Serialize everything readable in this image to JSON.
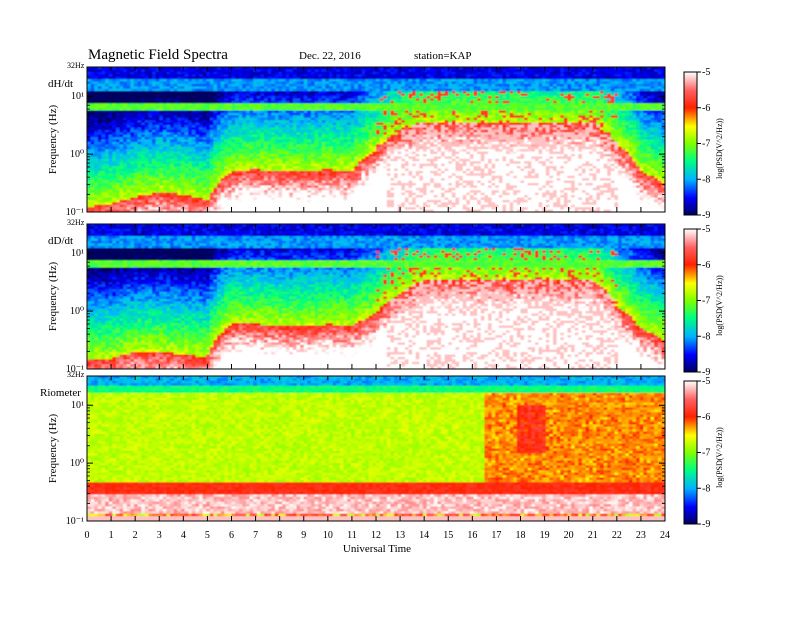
{
  "header": {
    "title": "Magnetic  Field  Spectra",
    "date": "Dec. 22, 2016",
    "station": "station=KAP"
  },
  "colorbar_ticks": [
    "-5",
    "-6",
    "-7",
    "-8",
    "-9"
  ],
  "colorbar_label": "log(PSD(V^2/Hz))",
  "x_ticks": [
    "0",
    "1",
    "2",
    "3",
    "4",
    "5",
    "6",
    "7",
    "8",
    "9",
    "10",
    "11",
    "12",
    "13",
    "14",
    "15",
    "16",
    "17",
    "18",
    "19",
    "20",
    "21",
    "22",
    "23",
    "24"
  ],
  "xlabel": "Universal Time",
  "ylabel": "Frequency  (Hz)",
  "panels": [
    {
      "label": "dH/dt",
      "top_label": "32Hz",
      "y_ticks": [
        "10¹",
        "10⁰",
        "10⁻¹"
      ]
    },
    {
      "label": "dD/dt",
      "top_label": "32Hz",
      "y_ticks": [
        "10¹",
        "10⁰",
        "10⁻¹"
      ]
    },
    {
      "label": "Riometer",
      "top_label": "32Hz",
      "y_ticks": [
        "10¹",
        "10⁰",
        "10⁻¹"
      ]
    }
  ],
  "chart_data": [
    {
      "type": "heatmap",
      "title": "Magnetic  Field  Spectra",
      "panel": "dH/dt",
      "xlabel": "Universal Time",
      "ylabel": "Frequency  (Hz)",
      "x_range": [
        0,
        24
      ],
      "y_range_hz": [
        0.1,
        32
      ],
      "y_scale": "log",
      "color_range": [
        -9,
        -5
      ],
      "band_edge_hz": [
        0.12,
        0.14,
        0.18,
        0.22,
        0.2,
        0.16,
        0.5,
        0.55,
        0.5,
        0.5,
        0.55,
        0.5,
        1.2,
        2.5,
        3.5,
        3.5,
        3.5,
        3.5,
        3.5,
        3.5,
        3.5,
        3.5,
        1.5,
        0.5,
        0.3
      ],
      "notes": "strong Pc1/Pi1 activity 12-22 UT up to ~4 Hz"
    },
    {
      "type": "heatmap",
      "panel": "dD/dt",
      "xlabel": "Universal Time",
      "ylabel": "Frequency  (Hz)",
      "x_range": [
        0,
        24
      ],
      "y_range_hz": [
        0.1,
        32
      ],
      "y_scale": "log",
      "color_range": [
        -9,
        -5
      ],
      "band_edge_hz": [
        0.14,
        0.15,
        0.2,
        0.2,
        0.18,
        0.16,
        0.6,
        0.6,
        0.55,
        0.55,
        0.6,
        0.55,
        0.9,
        2.0,
        3.5,
        3.5,
        3.5,
        3.5,
        3.5,
        3.5,
        3.5,
        3.5,
        1.2,
        0.5,
        0.3
      ]
    },
    {
      "type": "heatmap",
      "panel": "Riometer",
      "xlabel": "Universal Time",
      "ylabel": "Frequency  (Hz)",
      "x_range": [
        0,
        24
      ],
      "y_range_hz": [
        0.1,
        32
      ],
      "y_scale": "log",
      "color_range": [
        -9,
        -5
      ],
      "notes": "broadband yellow-green, red band near 0.35 Hz, orange above 17 UT"
    }
  ]
}
